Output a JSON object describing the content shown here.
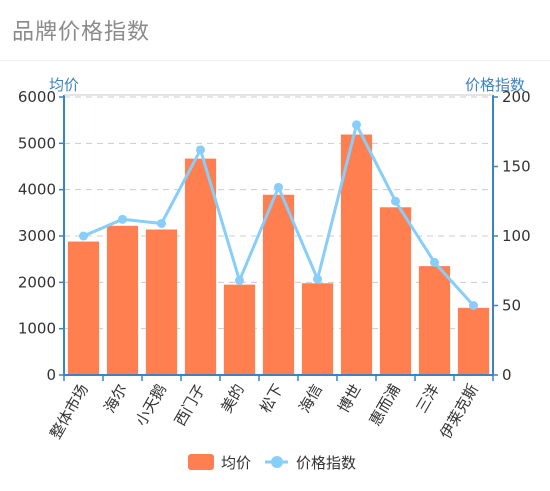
{
  "page": {
    "title": "品牌价格指数"
  },
  "colors": {
    "bar": "#ff7f50",
    "line": "#87cefa",
    "axis": "#3a83c4",
    "grid": "#cccccc"
  },
  "chart_data": {
    "type": "bar",
    "categories": [
      "整体市场",
      "海尔",
      "小天鹅",
      "西门子",
      "美的",
      "松下",
      "海信",
      "博世",
      "惠而浦",
      "三洋",
      "伊莱克斯"
    ],
    "series": [
      {
        "name": "均价",
        "type": "bar",
        "axis": "left",
        "values": [
          2880,
          3220,
          3140,
          4670,
          1950,
          3890,
          1980,
          5190,
          3620,
          2350,
          1450
        ]
      },
      {
        "name": "价格指数",
        "type": "line",
        "axis": "right",
        "values": [
          100,
          112,
          109,
          162,
          68,
          135,
          69,
          180,
          125,
          81,
          50
        ]
      }
    ],
    "yaxis_left": {
      "label": "均价",
      "min": 0,
      "max": 6000,
      "ticks": [
        0,
        1000,
        2000,
        3000,
        4000,
        5000,
        6000
      ]
    },
    "yaxis_right": {
      "label": "价格指数",
      "min": 0,
      "max": 200,
      "ticks": [
        0,
        50,
        100,
        150,
        200
      ]
    },
    "grid": true,
    "legend_position": "bottom-center"
  }
}
